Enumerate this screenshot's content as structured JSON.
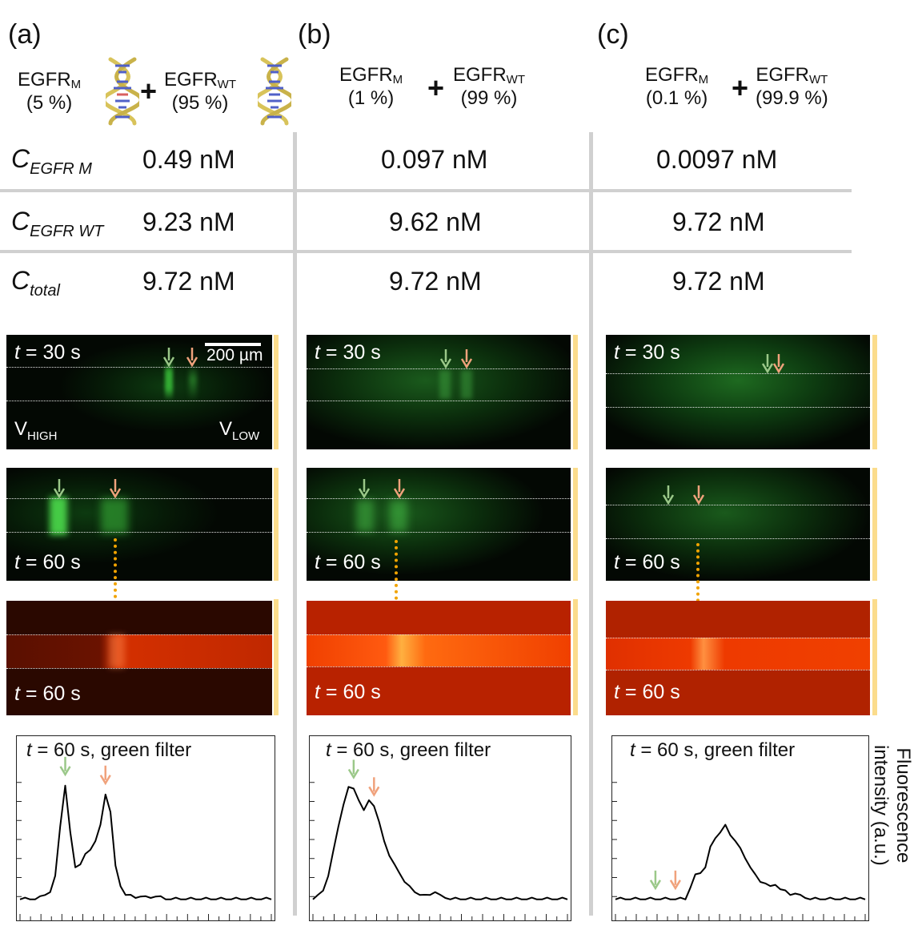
{
  "panels": [
    {
      "label": "(a)",
      "mutant": {
        "name": "EGFR",
        "sub": "M",
        "pct": "(5 %)"
      },
      "wildtype": {
        "name": "EGFR",
        "sub": "WT",
        "pct": "(95 %)"
      },
      "plus": "+",
      "c_mutant": "0.49 nM",
      "c_wildtype": "9.23 nM",
      "c_total": "9.72 nM",
      "img1_time": "t = 30 s",
      "img2_time": "t = 60 s",
      "img3_time": "t = 60 s",
      "graph_title": "t = 60 s, green filter"
    },
    {
      "label": "(b)",
      "mutant": {
        "name": "EGFR",
        "sub": "M",
        "pct": "(1 %)"
      },
      "wildtype": {
        "name": "EGFR",
        "sub": "WT",
        "pct": "(99 %)"
      },
      "plus": "+",
      "c_mutant": "0.097 nM",
      "c_wildtype": "9.62 nM",
      "c_total": "9.72 nM",
      "img1_time": "t = 30 s",
      "img2_time": "t = 60 s",
      "img3_time": "t = 60 s",
      "graph_title": "t = 60 s, green filter"
    },
    {
      "label": "(c)",
      "mutant": {
        "name": "EGFR",
        "sub": "M",
        "pct": "(0.1 %)"
      },
      "wildtype": {
        "name": "EGFR",
        "sub": "WT",
        "pct": "(99.9 %)"
      },
      "plus": "+",
      "c_mutant": "0.0097 nM",
      "c_wildtype": "9.72 nM",
      "c_total": "9.72 nM",
      "img1_time": "t = 30 s",
      "img2_time": "t = 60 s",
      "img3_time": "t = 60 s",
      "graph_title": "t = 60 s, green filter"
    }
  ],
  "row_labels": {
    "c_mutant": {
      "main": "C",
      "sub": "EGFR M"
    },
    "c_wildtype": {
      "main": "C",
      "sub": "EGFR WT"
    },
    "c_total": {
      "main": "C",
      "sub": "total"
    }
  },
  "scale_bar": "200 µm",
  "v_high": {
    "main": "V",
    "sub": "HIGH"
  },
  "v_low": {
    "main": "V",
    "sub": "LOW"
  },
  "y_axis_label": [
    "Fluorescence",
    "intensity (a.u.)"
  ],
  "colors": {
    "mutant_arrow": "#9bc889",
    "wildtype_arrow": "#f0a27c",
    "green_channel": "#1b8a2a",
    "red_channel": "#d42a00",
    "yellow_marker": "#fbdc8c",
    "grid_separator": "#d0d0d0"
  },
  "chart_data": [
    {
      "type": "line",
      "title": "t = 60 s, green filter",
      "ylabel": "Fluorescence intensity (a.u.)",
      "x": [
        0,
        2,
        4,
        6,
        8,
        10,
        12,
        14,
        16,
        18,
        20,
        22,
        24,
        26,
        28,
        30,
        32,
        34,
        36,
        38,
        40,
        42,
        44,
        46,
        48,
        50,
        52,
        54,
        56,
        58,
        60,
        62,
        64,
        66,
        68,
        70,
        72,
        74,
        76,
        78,
        80,
        82,
        84,
        86,
        88,
        90,
        92,
        94,
        96,
        98,
        100
      ],
      "y": [
        0.1,
        0.1,
        0.1,
        0.1,
        0.11,
        0.13,
        0.15,
        0.25,
        0.6,
        0.88,
        0.55,
        0.32,
        0.34,
        0.4,
        0.44,
        0.5,
        0.6,
        0.82,
        0.7,
        0.32,
        0.19,
        0.13,
        0.12,
        0.11,
        0.12,
        0.11,
        0.11,
        0.12,
        0.11,
        0.1,
        0.1,
        0.1,
        0.1,
        0.1,
        0.1,
        0.1,
        0.1,
        0.1,
        0.1,
        0.1,
        0.1,
        0.1,
        0.1,
        0.1,
        0.1,
        0.1,
        0.1,
        0.1,
        0.1,
        0.1,
        0.1
      ],
      "mutant_peak_x": 18,
      "wildtype_peak_x": 34
    },
    {
      "type": "line",
      "title": "t = 60 s, green filter",
      "ylabel": "Fluorescence intensity (a.u.)",
      "x": [
        0,
        2,
        4,
        6,
        8,
        10,
        12,
        14,
        16,
        18,
        20,
        22,
        24,
        26,
        28,
        30,
        32,
        34,
        36,
        38,
        40,
        42,
        44,
        46,
        48,
        50,
        52,
        54,
        56,
        58,
        60,
        62,
        64,
        66,
        68,
        70,
        72,
        74,
        76,
        78,
        80,
        82,
        84,
        86,
        88,
        90,
        92,
        94,
        96,
        98,
        100
      ],
      "y": [
        0.1,
        0.12,
        0.16,
        0.26,
        0.42,
        0.6,
        0.75,
        0.86,
        0.86,
        0.78,
        0.7,
        0.78,
        0.74,
        0.62,
        0.5,
        0.4,
        0.33,
        0.28,
        0.22,
        0.18,
        0.15,
        0.13,
        0.12,
        0.13,
        0.15,
        0.12,
        0.11,
        0.1,
        0.1,
        0.1,
        0.1,
        0.1,
        0.1,
        0.1,
        0.1,
        0.1,
        0.1,
        0.1,
        0.1,
        0.1,
        0.1,
        0.1,
        0.1,
        0.1,
        0.1,
        0.1,
        0.1,
        0.1,
        0.1,
        0.1,
        0.1
      ],
      "mutant_peak_x": 16,
      "wildtype_peak_x": 24
    },
    {
      "type": "line",
      "title": "t = 60 s, green filter",
      "ylabel": "Fluorescence intensity (a.u.)",
      "x": [
        0,
        2,
        4,
        6,
        8,
        10,
        12,
        14,
        16,
        18,
        20,
        22,
        24,
        26,
        28,
        30,
        32,
        34,
        36,
        38,
        40,
        42,
        44,
        46,
        48,
        50,
        52,
        54,
        56,
        58,
        60,
        62,
        64,
        66,
        68,
        70,
        72,
        74,
        76,
        78,
        80,
        82,
        84,
        86,
        88,
        90,
        92,
        94,
        96,
        98,
        100
      ],
      "y": [
        0.1,
        0.1,
        0.1,
        0.1,
        0.1,
        0.1,
        0.1,
        0.1,
        0.1,
        0.1,
        0.1,
        0.1,
        0.1,
        0.1,
        0.1,
        0.18,
        0.26,
        0.28,
        0.32,
        0.45,
        0.52,
        0.56,
        0.6,
        0.54,
        0.5,
        0.44,
        0.38,
        0.32,
        0.26,
        0.22,
        0.21,
        0.18,
        0.2,
        0.17,
        0.15,
        0.13,
        0.14,
        0.12,
        0.11,
        0.1,
        0.1,
        0.1,
        0.1,
        0.1,
        0.1,
        0.1,
        0.1,
        0.1,
        0.1,
        0.1,
        0.1
      ],
      "mutant_peak_x": 16,
      "wildtype_peak_x": 24
    }
  ]
}
